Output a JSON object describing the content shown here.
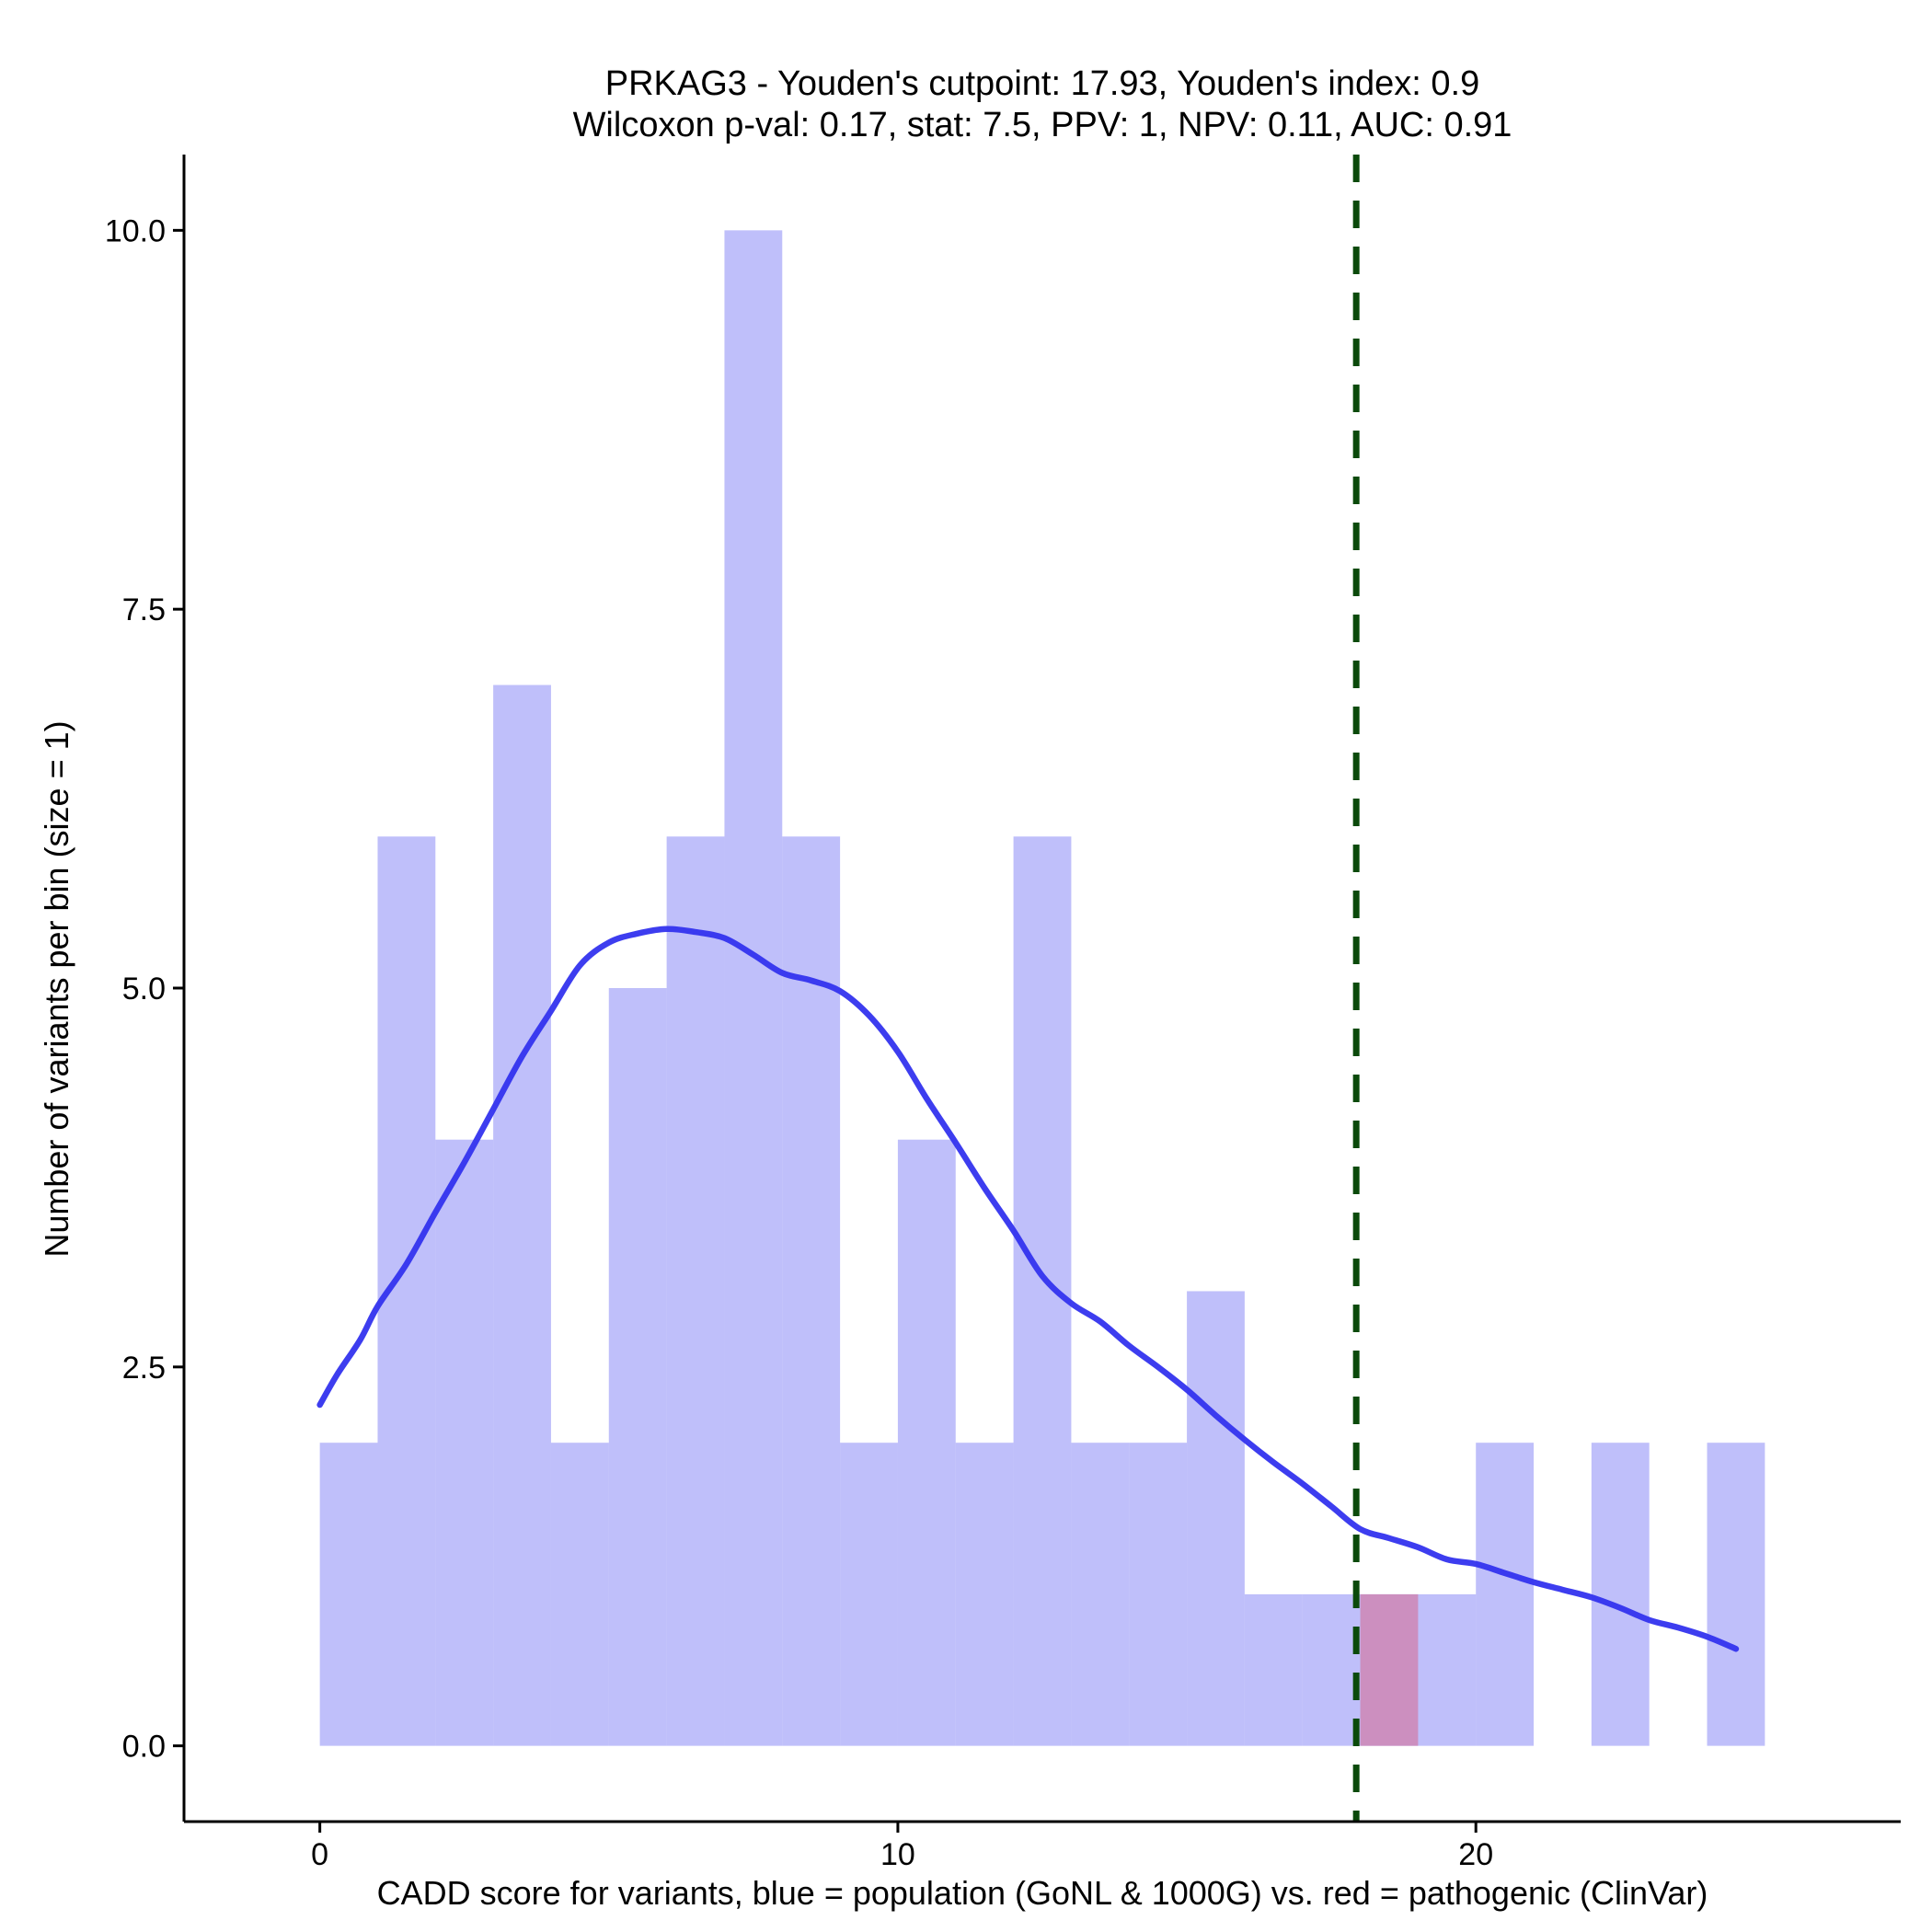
{
  "chart_data": {
    "type": "histogram",
    "title_line1": "PRKAG3 - Youden's cutpoint: 17.93, Youden's index: 0.9",
    "title_line2": "Wilcoxon p-val: 0.17, stat: 7.5, PPV: 1, NPV: 0.11, AUC: 0.91",
    "xlabel": "CADD score for variants, blue = population (GoNL & 1000G) vs. red = pathogenic (ClinVar)",
    "ylabel": "Number of variants per bin (size = 1)",
    "bin_size": 1,
    "xlim": [
      -2.35,
      27.35
    ],
    "ylim": [
      -0.5,
      10.5
    ],
    "x_ticks": [
      0,
      10,
      20
    ],
    "x_tick_labels": [
      "0",
      "10",
      "20"
    ],
    "y_ticks": [
      0,
      2.5,
      5,
      7.5,
      10
    ],
    "y_tick_labels": [
      "0.0",
      "2.5",
      "5.0",
      "7.5",
      "10.0"
    ],
    "cutpoint": 17.93,
    "series": [
      {
        "name": "population (GoNL & 1000G)",
        "color": "#8080f5",
        "opacity": 0.5,
        "bins": [
          {
            "x": 0,
            "count": 2
          },
          {
            "x": 1,
            "count": 6
          },
          {
            "x": 2,
            "count": 4
          },
          {
            "x": 3,
            "count": 7
          },
          {
            "x": 4,
            "count": 2
          },
          {
            "x": 5,
            "count": 5
          },
          {
            "x": 6,
            "count": 6
          },
          {
            "x": 7,
            "count": 10
          },
          {
            "x": 8,
            "count": 6
          },
          {
            "x": 9,
            "count": 2
          },
          {
            "x": 10,
            "count": 4
          },
          {
            "x": 11,
            "count": 2
          },
          {
            "x": 12,
            "count": 6
          },
          {
            "x": 13,
            "count": 2
          },
          {
            "x": 14,
            "count": 2
          },
          {
            "x": 15,
            "count": 3
          },
          {
            "x": 16,
            "count": 1
          },
          {
            "x": 17,
            "count": 1
          },
          {
            "x": 18,
            "count": 1
          },
          {
            "x": 19,
            "count": 1
          },
          {
            "x": 20,
            "count": 2
          },
          {
            "x": 22,
            "count": 2
          },
          {
            "x": 24,
            "count": 2
          }
        ]
      },
      {
        "name": "pathogenic (ClinVar)",
        "color": "#cc8fbf",
        "opacity": 1,
        "bins": [
          {
            "x": 18,
            "count": 1
          }
        ]
      }
    ],
    "density_curve": {
      "color": "#3333ee",
      "points": [
        [
          0.0,
          2.25
        ],
        [
          0.3,
          2.45
        ],
        [
          0.7,
          2.68
        ],
        [
          1.0,
          2.9
        ],
        [
          1.5,
          3.18
        ],
        [
          2.0,
          3.52
        ],
        [
          2.5,
          3.85
        ],
        [
          3.0,
          4.2
        ],
        [
          3.5,
          4.55
        ],
        [
          4.0,
          4.85
        ],
        [
          4.5,
          5.15
        ],
        [
          5.0,
          5.3
        ],
        [
          5.5,
          5.36
        ],
        [
          6.0,
          5.39
        ],
        [
          6.5,
          5.37
        ],
        [
          7.0,
          5.33
        ],
        [
          7.5,
          5.22
        ],
        [
          8.0,
          5.1
        ],
        [
          8.5,
          5.05
        ],
        [
          9.0,
          4.98
        ],
        [
          9.5,
          4.82
        ],
        [
          10.0,
          4.58
        ],
        [
          10.5,
          4.27
        ],
        [
          11.0,
          3.98
        ],
        [
          11.5,
          3.68
        ],
        [
          12.0,
          3.4
        ],
        [
          12.5,
          3.1
        ],
        [
          13.0,
          2.92
        ],
        [
          13.5,
          2.8
        ],
        [
          14.0,
          2.64
        ],
        [
          14.5,
          2.5
        ],
        [
          15.0,
          2.35
        ],
        [
          15.5,
          2.18
        ],
        [
          16.0,
          2.02
        ],
        [
          16.5,
          1.87
        ],
        [
          17.0,
          1.73
        ],
        [
          17.5,
          1.58
        ],
        [
          18.0,
          1.43
        ],
        [
          18.5,
          1.37
        ],
        [
          19.0,
          1.31
        ],
        [
          19.5,
          1.23
        ],
        [
          20.0,
          1.2
        ],
        [
          20.5,
          1.14
        ],
        [
          21.0,
          1.08
        ],
        [
          21.5,
          1.03
        ],
        [
          22.0,
          0.98
        ],
        [
          22.5,
          0.91
        ],
        [
          23.0,
          0.83
        ],
        [
          23.5,
          0.78
        ],
        [
          24.0,
          0.72
        ],
        [
          24.5,
          0.64
        ]
      ]
    }
  }
}
